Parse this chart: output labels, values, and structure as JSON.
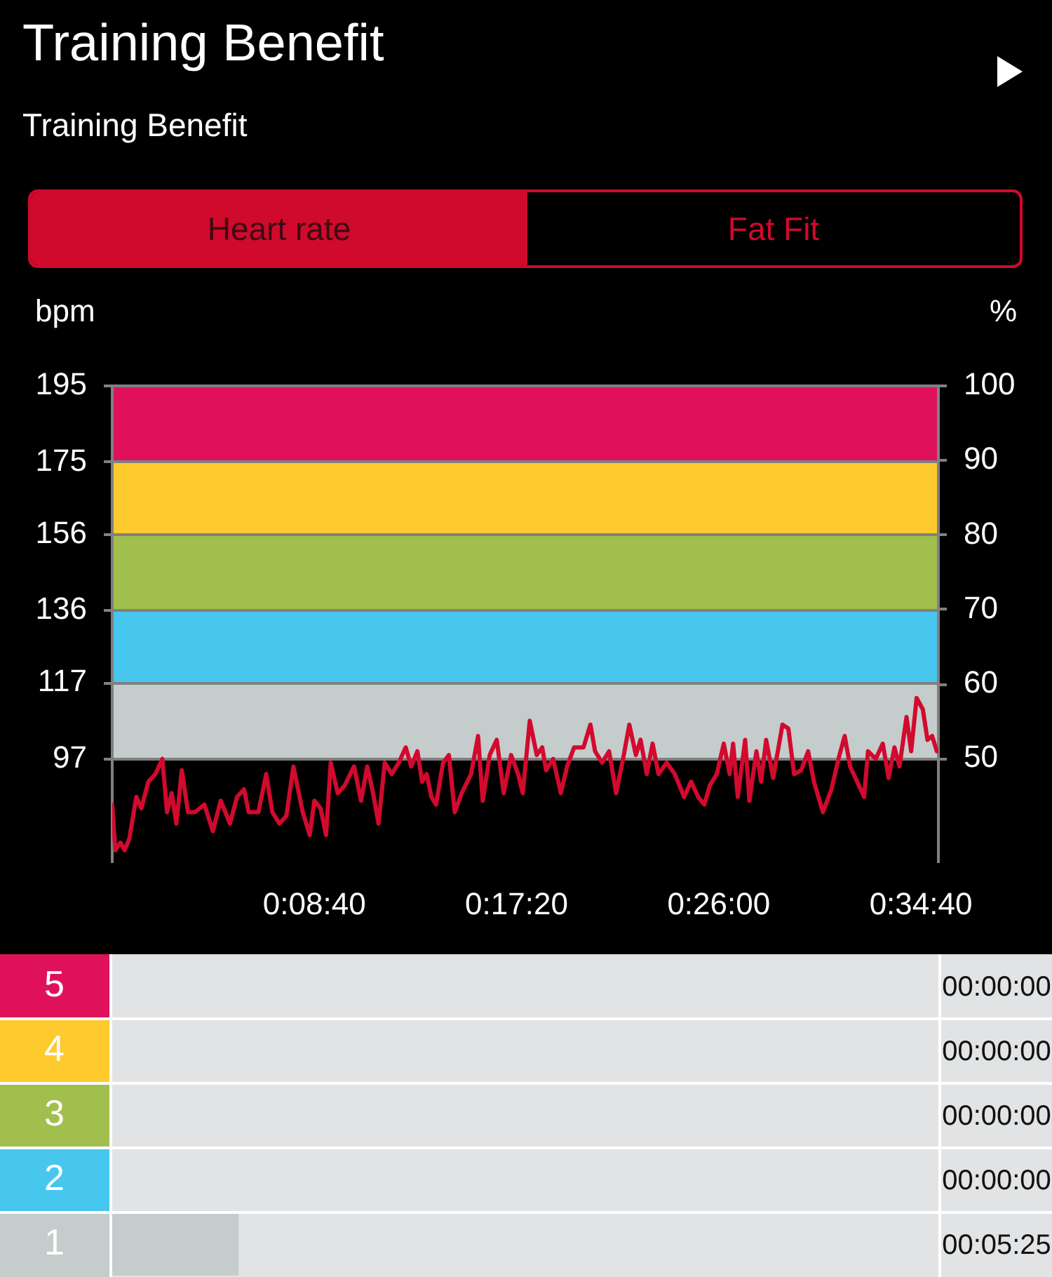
{
  "chart_data": [
    {
      "type": "line",
      "title": "Training Benefit",
      "subtitle": "Training Benefit",
      "annotations": [
        "Heart rate",
        "Fat Fit"
      ],
      "ylabel": "bpm",
      "y2label": "%",
      "x": [
        0,
        8,
        21,
        32,
        44,
        62,
        75,
        93,
        111,
        129,
        141,
        153,
        165,
        179,
        195,
        213,
        237,
        259,
        279,
        303,
        321,
        339,
        351,
        376,
        396,
        412,
        430,
        448,
        466,
        490,
        508,
        520,
        536,
        550,
        562,
        580,
        598,
        622,
        640,
        656,
        671,
        685,
        701,
        719,
        737,
        755,
        769,
        785,
        797,
        809,
        821,
        833,
        851,
        866,
        881,
        899,
        923,
        941,
        953,
        971,
        989,
        1007,
        1026,
        1044,
        1056,
        1074,
        1092,
        1106,
        1116,
        1134,
        1154,
        1170,
        1188,
        1212,
        1230,
        1242,
        1260,
        1278,
        1296,
        1314,
        1330,
        1347,
        1359,
        1375,
        1390,
        1405,
        1426,
        1447,
        1471,
        1489,
        1507,
        1523,
        1537,
        1555,
        1573,
        1588,
        1597,
        1609,
        1628,
        1639,
        1657,
        1669,
        1682,
        1700,
        1724,
        1739,
        1754,
        1772,
        1790,
        1805,
        1828,
        1850,
        1868,
        1884,
        1898,
        1916,
        1934,
        1944,
        1964,
        1982,
        1997,
        2012,
        2025,
        2043,
        2055,
        2069,
        2085,
        2097,
        2109,
        2121
      ],
      "values": [
        85,
        73,
        75,
        73,
        76,
        87,
        84,
        91,
        93,
        97,
        83,
        88,
        80,
        94,
        83,
        83,
        85,
        78,
        86,
        80,
        87,
        89,
        83,
        83,
        93,
        83,
        80,
        82,
        95,
        83,
        77,
        86,
        84,
        77,
        96,
        88,
        90,
        95,
        86,
        95,
        88,
        80,
        96,
        93,
        96,
        100,
        95,
        99,
        91,
        93,
        87,
        85,
        96,
        98,
        83,
        88,
        93,
        103,
        86,
        98,
        102,
        88,
        98,
        93,
        88,
        107,
        98,
        100,
        94,
        97,
        88,
        95,
        100,
        100,
        106,
        99,
        96,
        99,
        88,
        97,
        106,
        98,
        102,
        93,
        101,
        93,
        96,
        93,
        87,
        91,
        87,
        85,
        90,
        93,
        101,
        93,
        101,
        87,
        102,
        86,
        99,
        91,
        102,
        92,
        106,
        105,
        93,
        94,
        99,
        91,
        83,
        89,
        97,
        103,
        95,
        91,
        87,
        99,
        97,
        101,
        92,
        100,
        95,
        108,
        99,
        113,
        110,
        102,
        103,
        99
      ],
      "color": "#d20a2e",
      "xlim": [
        0,
        2125
      ],
      "xticks": [
        {
          "value": 520,
          "label": "0:08:40"
        },
        {
          "value": 1040,
          "label": "0:17:20"
        },
        {
          "value": 1560,
          "label": "0:26:00"
        },
        {
          "value": 2080,
          "label": "0:34:40"
        }
      ],
      "ylim": [
        70,
        195
      ],
      "yticks": [
        97,
        117,
        136,
        156,
        175,
        195
      ],
      "y2lim": [
        36.2,
        100
      ],
      "y2ticks": [
        50,
        60,
        70,
        80,
        90,
        100
      ],
      "bands": [
        {
          "axis": "y2",
          "from": 50,
          "to": 60,
          "color": "#c5cccc"
        },
        {
          "axis": "y2",
          "from": 60,
          "to": 70,
          "color": "#48c7ee"
        },
        {
          "axis": "y2",
          "from": 70,
          "to": 80,
          "color": "#a0bf4c"
        },
        {
          "axis": "y2",
          "from": 80,
          "to": 90,
          "color": "#ffca2e"
        },
        {
          "axis": "y2",
          "from": 90,
          "to": 100,
          "color": "#de115a"
        }
      ],
      "grid": "y"
    },
    {
      "type": "bar",
      "orientation": "horizontal",
      "categories": [
        "5",
        "4",
        "3",
        "2",
        "1"
      ],
      "values": [
        0,
        0,
        0,
        0,
        325
      ],
      "colors": [
        "#de115a",
        "#ffca2e",
        "#a0bf4c",
        "#48c7ee",
        "#c5cccc"
      ],
      "value_labels": [
        "00:00:00",
        "00:00:00",
        "00:00:00",
        "00:00:00",
        "00:05:25"
      ],
      "xlim": [
        0,
        2125
      ],
      "tick_labels": "y"
    }
  ]
}
